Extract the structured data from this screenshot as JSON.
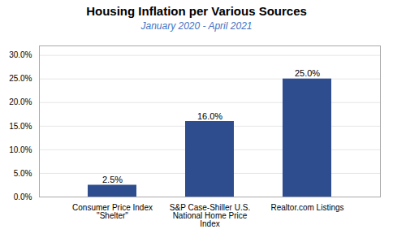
{
  "chart_data": {
    "type": "bar",
    "title": "Housing Inflation per Various Sources",
    "subtitle": "January 2020 - April 2021",
    "categories": [
      "Consumer Price Index\n\"Shelter\"",
      "S&P Case-Shiller U.S.\nNational Home Price\nIndex",
      "Realtor.com Listings"
    ],
    "values": [
      0.025,
      0.16,
      0.25
    ],
    "value_labels": [
      "2.5%",
      "16.0%",
      "25.0%"
    ],
    "color": "#2E4D8F",
    "ylim": [
      0,
      0.32
    ],
    "yticks": [
      {
        "value": 0.0,
        "label": "0.0%"
      },
      {
        "value": 0.05,
        "label": "5.0%"
      },
      {
        "value": 0.1,
        "label": "10.0%"
      },
      {
        "value": 0.15,
        "label": "15.0%"
      },
      {
        "value": 0.2,
        "label": "20.0%"
      },
      {
        "value": 0.25,
        "label": "25.0%"
      },
      {
        "value": 0.3,
        "label": "30.0%"
      }
    ],
    "grid": true,
    "data_labels": true
  }
}
